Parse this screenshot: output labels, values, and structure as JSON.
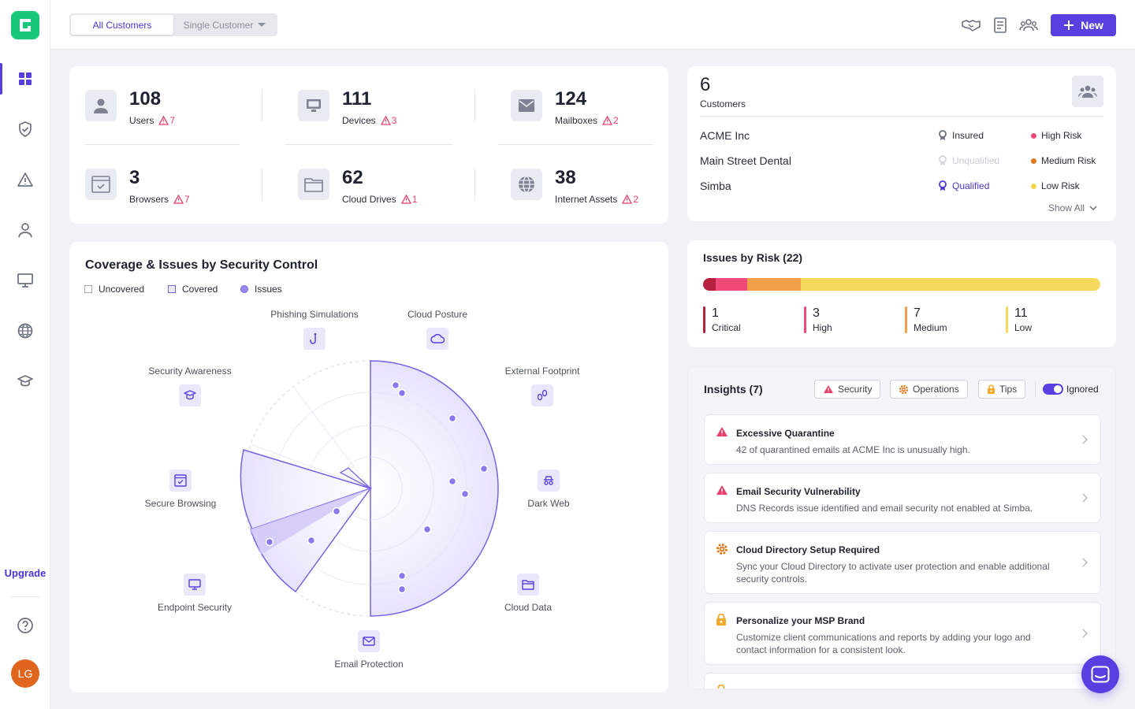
{
  "sidebar": {
    "upgrade_label": "Upgrade",
    "avatar_initials": "LG"
  },
  "topbar": {
    "tabs": [
      "All Customers",
      "Single Customer"
    ],
    "new_label": "New"
  },
  "stats": [
    {
      "value": "108",
      "label": "Users",
      "warn": "7"
    },
    {
      "value": "111",
      "label": "Devices",
      "warn": "3"
    },
    {
      "value": "124",
      "label": "Mailboxes",
      "warn": "2"
    },
    {
      "value": "3",
      "label": "Browsers",
      "warn": "7"
    },
    {
      "value": "62",
      "label": "Cloud Drives",
      "warn": "1"
    },
    {
      "value": "38",
      "label": "Internet Assets",
      "warn": "2"
    }
  ],
  "customers": {
    "count": "6",
    "label": "Customers",
    "rows": [
      {
        "name": "ACME Inc",
        "insurance": "Insured",
        "risk": "High Risk",
        "ins_color": "#2a2e3a",
        "risk_color": "#ef4a78"
      },
      {
        "name": "Main Street Dental",
        "insurance": "Unqualified",
        "risk": "Medium Risk",
        "ins_color": "#c9ccd4",
        "risk_color": "#e07a1f"
      },
      {
        "name": "Simba",
        "insurance": "Qualified",
        "risk": "Low Risk",
        "ins_color": "#4b34d1",
        "risk_color": "#f1d84a"
      }
    ],
    "show_all": "Show All"
  },
  "coverage": {
    "title": "Coverage & Issues by Security Control",
    "legend": [
      "Uncovered",
      "Covered",
      "Issues"
    ],
    "controls": [
      "Phishing Simulations",
      "Cloud Posture",
      "External Footprint",
      "Dark Web",
      "Cloud Data",
      "Email Protection",
      "Endpoint Security",
      "Secure Browsing",
      "Security Awareness"
    ]
  },
  "risk": {
    "title": "Issues by Risk (22)",
    "items": [
      {
        "value": "1",
        "label": "Critical",
        "color": "#b5203f"
      },
      {
        "value": "3",
        "label": "High",
        "color": "#ef4a78"
      },
      {
        "value": "7",
        "label": "Medium",
        "color": "#f2a04a"
      },
      {
        "value": "11",
        "label": "Low",
        "color": "#f4d95c"
      }
    ]
  },
  "insights": {
    "title": "Insights (7)",
    "filters": [
      "Security",
      "Operations",
      "Tips"
    ],
    "toggle_label": "Ignored",
    "items": [
      {
        "title": "Excessive Quarantine",
        "desc": "42 of quarantined emails at ACME Inc is unusually high."
      },
      {
        "title": "Email Security Vulnerability",
        "desc": "DNS Records issue identified and email security not enabled at Simba."
      },
      {
        "title": "Cloud Directory Setup Required",
        "desc": "Sync your Cloud Directory to activate user protection and enable additional security controls."
      },
      {
        "title": "Personalize your MSP Brand",
        "desc": "Customize client communications and reports by adding your logo and contact information for a consistent look."
      }
    ]
  }
}
